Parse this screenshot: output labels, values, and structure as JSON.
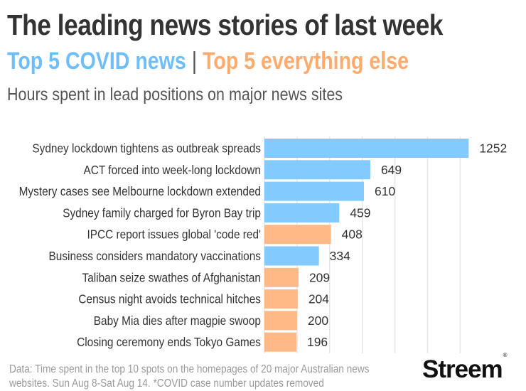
{
  "header": {
    "title": "The leading news stories of last week",
    "subtitle_covid": "Top 5 COVID news",
    "subtitle_sep": " | ",
    "subtitle_other": "Top 5 everything else",
    "description": "Hours spent in lead positions on major news sites"
  },
  "colors": {
    "covid": "#7fc8ff",
    "other": "#ffb782",
    "covid_text": "#6ebff9",
    "other_text": "#ffab6e",
    "gridline": "#e6e6e6",
    "label": "#333333"
  },
  "chart_data": {
    "type": "bar",
    "orientation": "horizontal",
    "title": "The leading news stories of last week",
    "subtitle": "Hours spent in lead positions on major news sites",
    "xlabel": "",
    "ylabel": "",
    "xlim": [
      0,
      1300
    ],
    "grid": true,
    "grid_ticks": [
      0,
      200,
      400,
      600,
      800,
      1000,
      1200
    ],
    "legend": "subtitle (color-coded text)",
    "categories": [
      "Sydney lockdown tightens as outbreak spreads",
      "ACT forced into week-long lockdown",
      "Mystery cases see Melbourne lockdown extended",
      "Sydney family charged for Byron Bay trip",
      "IPCC report issues global 'code red'",
      "Business considers mandatory vaccinations",
      "Taliban seize swathes of Afghanistan",
      "Census night avoids technical hitches",
      "Baby Mia dies after magpie swoop",
      "Closing ceremony ends Tokyo Games"
    ],
    "values": [
      1252,
      649,
      610,
      459,
      408,
      334,
      209,
      204,
      200,
      196
    ],
    "groups": [
      "covid",
      "covid",
      "covid",
      "covid",
      "other",
      "covid",
      "other",
      "other",
      "other",
      "other"
    ],
    "series": [
      {
        "name": "Top 5 COVID news",
        "key": "covid"
      },
      {
        "name": "Top 5 everything else",
        "key": "other"
      }
    ]
  },
  "footer": {
    "line1": "Data: Time spent in the top 10 spots on the homepages of 20 major Australian news",
    "line2": "websites. Sun Aug 8-Sat Aug 14. *COVID case number updates removed",
    "logo": "Streem",
    "logo_mark": "®"
  }
}
